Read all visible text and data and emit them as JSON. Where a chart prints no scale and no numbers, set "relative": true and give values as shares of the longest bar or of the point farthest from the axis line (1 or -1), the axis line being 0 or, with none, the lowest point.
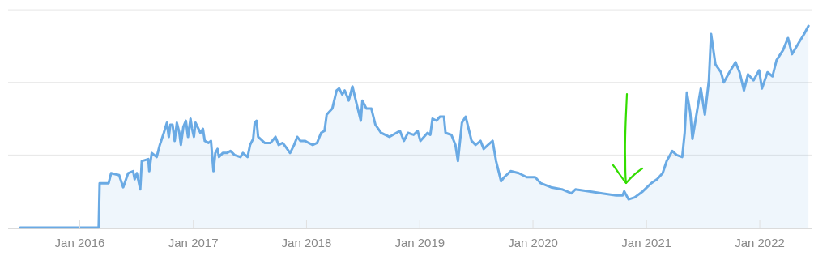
{
  "chart_data": {
    "type": "area",
    "relative": true,
    "ref_lines": [
      {
        "axis": "y",
        "value": 0.36,
        "color": "#e6e6e6"
      },
      {
        "axis": "y",
        "value": 0.72,
        "color": "#e6e6e6"
      },
      {
        "axis": "y",
        "value": 1.08,
        "color": "#e6e6e6"
      }
    ],
    "xlim": [
      "2015-05-15",
      "2022-06-17"
    ],
    "xticks": [
      {
        "value": "2016-01",
        "label": "Jan 2016"
      },
      {
        "value": "2017-01",
        "label": "Jan 2017"
      },
      {
        "value": "2018-01",
        "label": "Jan 2018"
      },
      {
        "value": "2019-01",
        "label": "Jan 2019"
      },
      {
        "value": "2020-01",
        "label": "Jan 2020"
      },
      {
        "value": "2021-01",
        "label": "Jan 2021"
      },
      {
        "value": "2022-01",
        "label": "Jan 2022"
      }
    ],
    "x": [
      "2015-06-23",
      "2016-03-02",
      "2016-03-05",
      "2016-03-13",
      "2016-04-03",
      "2016-04-11",
      "2016-05-07",
      "2016-05-20",
      "2016-06-05",
      "2016-06-21",
      "2016-06-26",
      "2016-07-03",
      "2016-07-14",
      "2016-07-19",
      "2016-08-09",
      "2016-08-12",
      "2016-08-20",
      "2016-09-05",
      "2016-09-15",
      "2016-09-28",
      "2016-10-08",
      "2016-10-14",
      "2016-10-19",
      "2016-10-26",
      "2016-11-02",
      "2016-11-09",
      "2016-11-17",
      "2016-11-22",
      "2016-11-30",
      "2016-12-08",
      "2016-12-15",
      "2016-12-23",
      "2016-12-28",
      "2017-01-03",
      "2017-01-08",
      "2017-01-24",
      "2017-02-01",
      "2017-02-07",
      "2017-02-19",
      "2017-02-27",
      "2017-03-07",
      "2017-03-13",
      "2017-03-20",
      "2017-03-25",
      "2017-04-06",
      "2017-04-19",
      "2017-05-01",
      "2017-05-14",
      "2017-06-02",
      "2017-06-10",
      "2017-06-25",
      "2017-07-03",
      "2017-07-13",
      "2017-07-18",
      "2017-07-24",
      "2017-07-29",
      "2017-08-19",
      "2017-09-07",
      "2017-09-23",
      "2017-10-03",
      "2017-10-16",
      "2017-10-26",
      "2017-11-09",
      "2017-11-22",
      "2017-12-02",
      "2017-12-12",
      "2017-12-28",
      "2018-01-08",
      "2018-01-21",
      "2018-02-04",
      "2018-02-17",
      "2018-02-28",
      "2018-03-07",
      "2018-03-25",
      "2018-04-08",
      "2018-04-16",
      "2018-04-26",
      "2018-05-04",
      "2018-05-17",
      "2018-05-29",
      "2018-06-12",
      "2018-06-25",
      "2018-06-30",
      "2018-07-13",
      "2018-07-29",
      "2018-08-11",
      "2018-08-29",
      "2018-09-25",
      "2018-10-29",
      "2018-11-11",
      "2018-11-24",
      "2018-12-12",
      "2018-12-25",
      "2019-01-03",
      "2019-01-26",
      "2019-02-04",
      "2019-02-11",
      "2019-02-24",
      "2019-03-07",
      "2019-03-20",
      "2019-03-25",
      "2019-04-13",
      "2019-04-26",
      "2019-05-04",
      "2019-05-17",
      "2019-05-29",
      "2019-06-17",
      "2019-06-30",
      "2019-07-16",
      "2019-07-26",
      "2019-08-09",
      "2019-08-24",
      "2019-09-04",
      "2019-09-20",
      "2019-09-30",
      "2019-10-21",
      "2019-11-16",
      "2019-12-12",
      "2020-01-08",
      "2020-01-26",
      "2020-02-28",
      "2020-04-03",
      "2020-05-04",
      "2020-05-17",
      "2020-06-30",
      "2020-08-11",
      "2020-09-25",
      "2020-10-16",
      "2020-10-21",
      "2020-11-04",
      "2020-11-24",
      "2020-12-20",
      "2021-01-16",
      "2021-02-04",
      "2021-02-22",
      "2021-03-07",
      "2021-03-25",
      "2021-04-08",
      "2021-04-26",
      "2021-05-04",
      "2021-05-11",
      "2021-05-22",
      "2021-05-29",
      "2021-06-12",
      "2021-06-25",
      "2021-07-08",
      "2021-07-21",
      "2021-07-28",
      "2021-08-11",
      "2021-08-29",
      "2021-09-07",
      "2021-09-25",
      "2021-10-15",
      "2021-10-28",
      "2021-11-11",
      "2021-11-24",
      "2021-12-12",
      "2021-12-30",
      "2022-01-08",
      "2022-01-26",
      "2022-02-11",
      "2022-02-24",
      "2022-03-17",
      "2022-04-02",
      "2022-04-15",
      "2022-05-08",
      "2022-05-24",
      "2022-06-07"
    ],
    "series": [
      {
        "color": "#6aaae4",
        "values": [
          0,
          0,
          0.22,
          0.22,
          0.22,
          0.27,
          0.26,
          0.2,
          0.27,
          0.28,
          0.24,
          0.27,
          0.19,
          0.33,
          0.34,
          0.28,
          0.37,
          0.35,
          0.41,
          0.47,
          0.52,
          0.45,
          0.51,
          0.51,
          0.43,
          0.52,
          0.47,
          0.41,
          0.5,
          0.53,
          0.45,
          0.54,
          0.49,
          0.45,
          0.52,
          0.47,
          0.49,
          0.43,
          0.42,
          0.43,
          0.28,
          0.37,
          0.39,
          0.35,
          0.37,
          0.37,
          0.38,
          0.36,
          0.35,
          0.37,
          0.35,
          0.41,
          0.44,
          0.52,
          0.53,
          0.45,
          0.42,
          0.42,
          0.45,
          0.41,
          0.42,
          0.4,
          0.37,
          0.41,
          0.45,
          0.43,
          0.43,
          0.42,
          0.41,
          0.42,
          0.47,
          0.48,
          0.56,
          0.59,
          0.68,
          0.69,
          0.66,
          0.68,
          0.63,
          0.7,
          0.61,
          0.53,
          0.63,
          0.59,
          0.59,
          0.51,
          0.47,
          0.45,
          0.48,
          0.43,
          0.47,
          0.46,
          0.48,
          0.43,
          0.47,
          0.46,
          0.54,
          0.53,
          0.55,
          0.55,
          0.47,
          0.46,
          0.41,
          0.33,
          0.52,
          0.55,
          0.43,
          0.41,
          0.43,
          0.39,
          0.41,
          0.43,
          0.33,
          0.23,
          0.25,
          0.28,
          0.27,
          0.25,
          0.25,
          0.22,
          0.2,
          0.19,
          0.17,
          0.19,
          0.18,
          0.17,
          0.16,
          0.16,
          0.18,
          0.14,
          0.15,
          0.18,
          0.22,
          0.24,
          0.27,
          0.33,
          0.38,
          0.36,
          0.35,
          0.47,
          0.67,
          0.57,
          0.44,
          0.57,
          0.69,
          0.56,
          0.73,
          0.96,
          0.81,
          0.77,
          0.72,
          0.77,
          0.82,
          0.77,
          0.68,
          0.76,
          0.73,
          0.78,
          0.69,
          0.77,
          0.75,
          0.83,
          0.88,
          0.94,
          0.86,
          0.92,
          0.96,
          1.0
        ]
      }
    ]
  }
}
